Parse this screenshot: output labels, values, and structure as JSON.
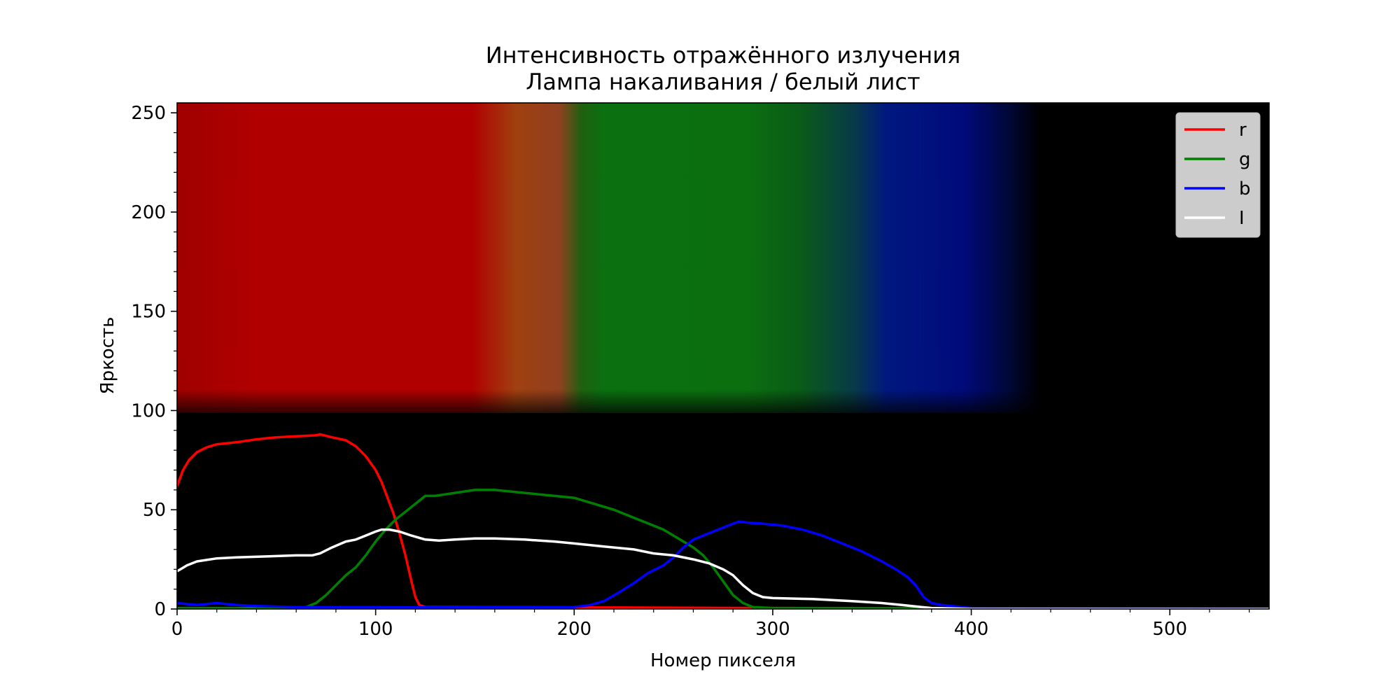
{
  "chart_data": {
    "type": "line",
    "title": "Интенсивность отражённого излучения",
    "subtitle": "Лампа накаливания / белый лист",
    "xlabel": "Номер пикселя",
    "ylabel": "Яркость",
    "xlim": [
      0,
      550
    ],
    "ylim": [
      0,
      255
    ],
    "xticks": [
      "0",
      "100",
      "200",
      "300",
      "400",
      "500"
    ],
    "yticks": [
      "0",
      "50",
      "100",
      "150",
      "200",
      "250"
    ],
    "grid": false,
    "legend_position": "top-right",
    "background": "spectrum image: red, orange, green, blue bands fading to black",
    "series": [
      {
        "name": "r",
        "color": "#ff0000",
        "points": [
          [
            0,
            62
          ],
          [
            3,
            70
          ],
          [
            6,
            75
          ],
          [
            10,
            79
          ],
          [
            15,
            81.5
          ],
          [
            20,
            83
          ],
          [
            30,
            84
          ],
          [
            40,
            85.5
          ],
          [
            50,
            86.5
          ],
          [
            60,
            87
          ],
          [
            70,
            87.5
          ],
          [
            72,
            88
          ],
          [
            78,
            86.5
          ],
          [
            85,
            85
          ],
          [
            90,
            82
          ],
          [
            95,
            77
          ],
          [
            100,
            70
          ],
          [
            103,
            64
          ],
          [
            106,
            56
          ],
          [
            109,
            48
          ],
          [
            112,
            38
          ],
          [
            115,
            27
          ],
          [
            118,
            14
          ],
          [
            120,
            6
          ],
          [
            122,
            2
          ],
          [
            125,
            1
          ],
          [
            130,
            1
          ],
          [
            200,
            0.8
          ],
          [
            300,
            0.5
          ],
          [
            400,
            0
          ],
          [
            550,
            0
          ]
        ]
      },
      {
        "name": "g",
        "color": "#008000",
        "points": [
          [
            0,
            0.5
          ],
          [
            60,
            0.5
          ],
          [
            65,
            1
          ],
          [
            70,
            3
          ],
          [
            75,
            7
          ],
          [
            80,
            12
          ],
          [
            85,
            17
          ],
          [
            90,
            21
          ],
          [
            95,
            27
          ],
          [
            100,
            34
          ],
          [
            105,
            40
          ],
          [
            110,
            45
          ],
          [
            115,
            49
          ],
          [
            120,
            53
          ],
          [
            125,
            57
          ],
          [
            130,
            57
          ],
          [
            140,
            58.5
          ],
          [
            150,
            60
          ],
          [
            160,
            60
          ],
          [
            170,
            59
          ],
          [
            180,
            58
          ],
          [
            190,
            57
          ],
          [
            200,
            56
          ],
          [
            210,
            53
          ],
          [
            220,
            50
          ],
          [
            230,
            46
          ],
          [
            240,
            42
          ],
          [
            245,
            40
          ],
          [
            250,
            37
          ],
          [
            255,
            34
          ],
          [
            260,
            31
          ],
          [
            265,
            27
          ],
          [
            270,
            21
          ],
          [
            275,
            14
          ],
          [
            280,
            7
          ],
          [
            285,
            3
          ],
          [
            290,
            1
          ],
          [
            300,
            0.5
          ],
          [
            550,
            0
          ]
        ]
      },
      {
        "name": "b",
        "color": "#0000ff",
        "points": [
          [
            0,
            3
          ],
          [
            5,
            2.5
          ],
          [
            10,
            2
          ],
          [
            15,
            2.5
          ],
          [
            20,
            3
          ],
          [
            25,
            2.5
          ],
          [
            30,
            2
          ],
          [
            40,
            1.5
          ],
          [
            60,
            1
          ],
          [
            90,
            1
          ],
          [
            130,
            0.8
          ],
          [
            200,
            1
          ],
          [
            208,
            2
          ],
          [
            215,
            4
          ],
          [
            222,
            8
          ],
          [
            230,
            13
          ],
          [
            237,
            18
          ],
          [
            245,
            22
          ],
          [
            250,
            26
          ],
          [
            255,
            31
          ],
          [
            260,
            35
          ],
          [
            265,
            37
          ],
          [
            270,
            39
          ],
          [
            275,
            41
          ],
          [
            280,
            43
          ],
          [
            283,
            44
          ],
          [
            288,
            43.5
          ],
          [
            295,
            43
          ],
          [
            305,
            42
          ],
          [
            315,
            40
          ],
          [
            325,
            37
          ],
          [
            335,
            33
          ],
          [
            345,
            29
          ],
          [
            355,
            24
          ],
          [
            362,
            20
          ],
          [
            368,
            16
          ],
          [
            372,
            12
          ],
          [
            376,
            6
          ],
          [
            380,
            3
          ],
          [
            385,
            2
          ],
          [
            390,
            1.5
          ],
          [
            400,
            0.5
          ],
          [
            550,
            0
          ]
        ]
      },
      {
        "name": "I",
        "color": "#ffffff",
        "points": [
          [
            0,
            19
          ],
          [
            5,
            22
          ],
          [
            10,
            24
          ],
          [
            20,
            25.5
          ],
          [
            30,
            26
          ],
          [
            45,
            26.5
          ],
          [
            60,
            27
          ],
          [
            68,
            27
          ],
          [
            72,
            28
          ],
          [
            78,
            31
          ],
          [
            85,
            34
          ],
          [
            90,
            35
          ],
          [
            95,
            37
          ],
          [
            100,
            39
          ],
          [
            103,
            40
          ],
          [
            107,
            40
          ],
          [
            112,
            39
          ],
          [
            118,
            37
          ],
          [
            125,
            35
          ],
          [
            132,
            34.5
          ],
          [
            140,
            35
          ],
          [
            150,
            35.5
          ],
          [
            160,
            35.5
          ],
          [
            175,
            35
          ],
          [
            190,
            34
          ],
          [
            200,
            33
          ],
          [
            215,
            31.5
          ],
          [
            230,
            30
          ],
          [
            240,
            28
          ],
          [
            250,
            27
          ],
          [
            260,
            25
          ],
          [
            268,
            23
          ],
          [
            275,
            20
          ],
          [
            280,
            17
          ],
          [
            285,
            12
          ],
          [
            290,
            8
          ],
          [
            295,
            6
          ],
          [
            300,
            5.5
          ],
          [
            320,
            5
          ],
          [
            340,
            4
          ],
          [
            355,
            3
          ],
          [
            365,
            2
          ],
          [
            375,
            1
          ],
          [
            380,
            0.5
          ],
          [
            400,
            0
          ],
          [
            550,
            0
          ]
        ]
      }
    ]
  }
}
